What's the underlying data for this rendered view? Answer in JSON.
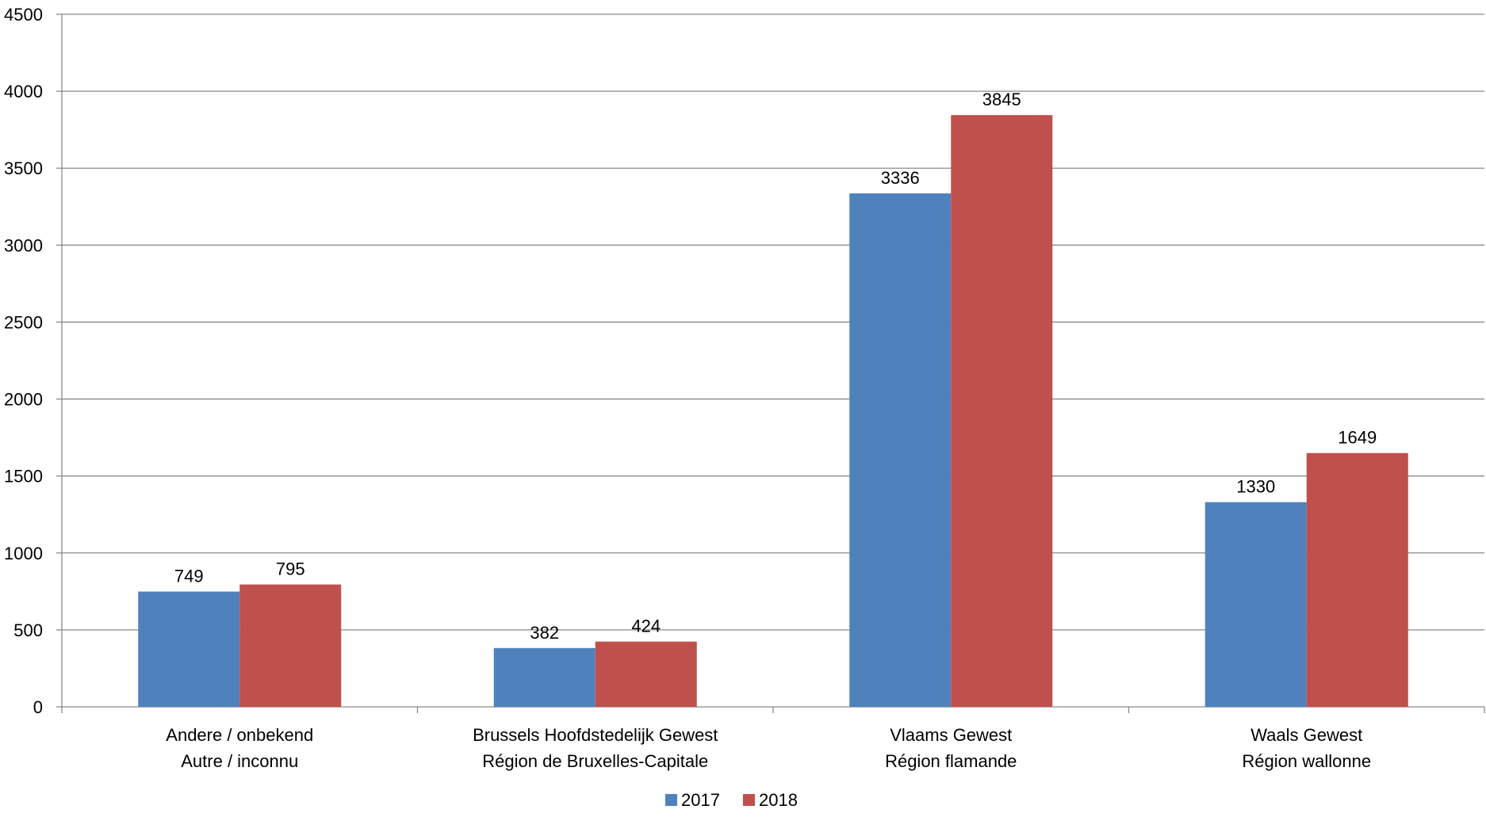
{
  "chart_data": {
    "type": "bar",
    "title": "",
    "xlabel": "",
    "ylabel": "",
    "ylim": [
      0,
      4500
    ],
    "yticks": [
      0,
      500,
      1000,
      1500,
      2000,
      2500,
      3000,
      3500,
      4000,
      4500
    ],
    "grid": true,
    "legend_position": "bottom",
    "categories": [
      [
        "Andere / onbekend",
        "Autre / inconnu"
      ],
      [
        "Brussels Hoofdstedelijk Gewest",
        "Région de Bruxelles-Capitale"
      ],
      [
        "Vlaams Gewest",
        "Région flamande"
      ],
      [
        "Waals Gewest",
        "Région wallonne"
      ]
    ],
    "series": [
      {
        "name": "2017",
        "color": "#4F81BD",
        "values": [
          749,
          382,
          3336,
          1330
        ]
      },
      {
        "name": "2018",
        "color": "#C0504D",
        "values": [
          795,
          424,
          3845,
          1649
        ]
      }
    ]
  }
}
